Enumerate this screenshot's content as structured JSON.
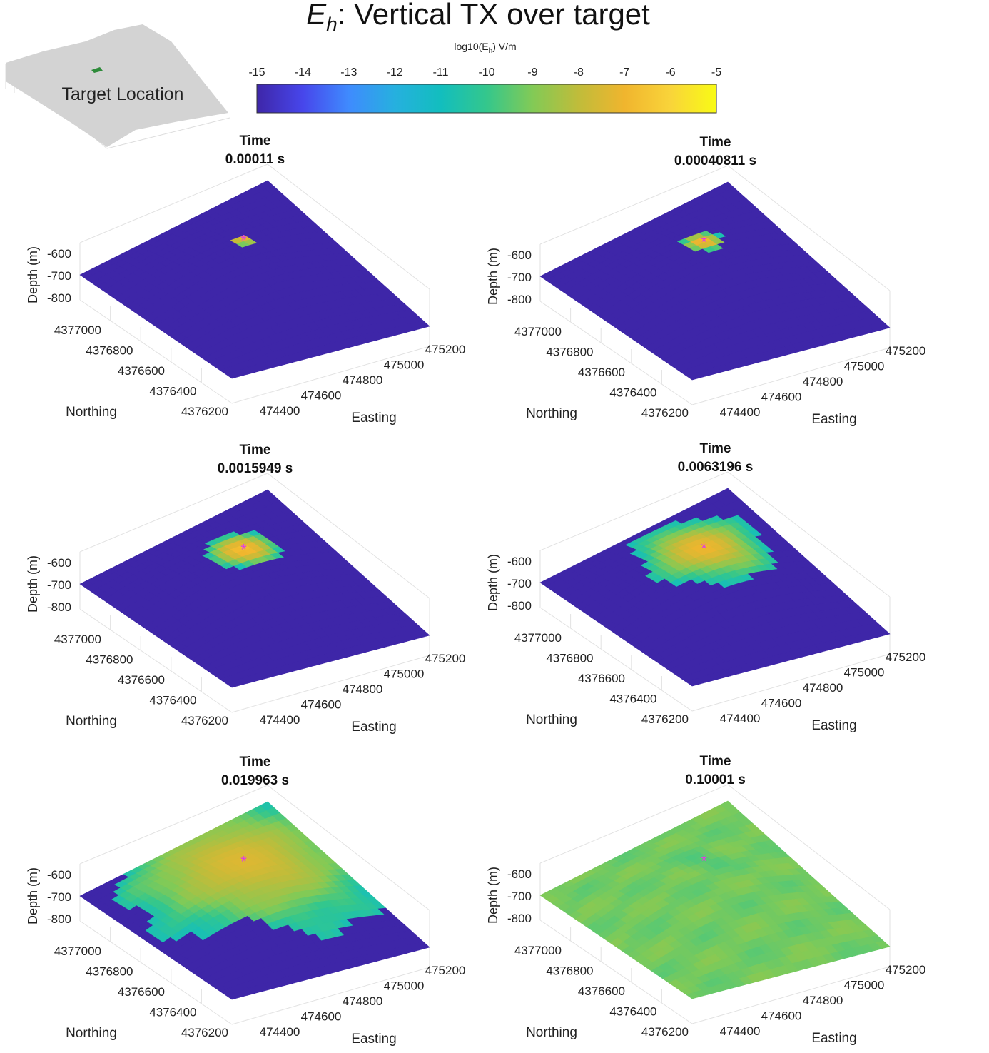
{
  "page": {
    "title_symbol": "E",
    "title_sub": "h",
    "title_rest": ": Vertical TX over target"
  },
  "inset": {
    "label": "Target Location",
    "target_color": "#2e8b3a",
    "surface_color": "#d3d3d3"
  },
  "chart_data": [
    {
      "type": "colorbar",
      "label_main": "log10(E",
      "label_sub": "h",
      "label_tail": ") V/m",
      "ticks": [
        -15,
        -14,
        -13,
        -12,
        -11,
        -10,
        -9,
        -8,
        -7,
        -6,
        -5
      ],
      "range": [
        -15,
        -5
      ],
      "colormap": "parula",
      "colors": [
        "#3e26a8",
        "#4746eb",
        "#3f8bfe",
        "#26b0df",
        "#12bebe",
        "#34c78c",
        "#82ca56",
        "#c0bc3a",
        "#f0b52e",
        "#f9d43a",
        "#f9fb15"
      ]
    },
    {
      "type": "surface3d",
      "title_line1": "Time",
      "time": "0.00011 s",
      "zlabel": "Depth (m)",
      "xlabel": "Easting",
      "ylabel": "Northing",
      "z_ticks": [
        "-600",
        "-700",
        "-800"
      ],
      "x_ticks": [
        "474400",
        "474600",
        "474800",
        "475000",
        "475200"
      ],
      "y_ticks": [
        "4377000",
        "4376800",
        "4376600",
        "4376400",
        "4376200"
      ],
      "background_log10": -15,
      "anomaly_peak_log10": -6.5,
      "anomaly_radius": 0.045,
      "target_marker": "*",
      "marker_color": "#e040e0"
    },
    {
      "type": "surface3d",
      "title_line1": "Time",
      "time": "0.00040811 s",
      "zlabel": "Depth (m)",
      "xlabel": "Easting",
      "ylabel": "Northing",
      "z_ticks": [
        "-600",
        "-700",
        "-800"
      ],
      "x_ticks": [
        "474400",
        "474600",
        "474800",
        "475000",
        "475200"
      ],
      "y_ticks": [
        "4377000",
        "4376800",
        "4376600",
        "4376400",
        "4376200"
      ],
      "background_log10": -15,
      "anomaly_peak_log10": -6.6,
      "anomaly_radius": 0.08,
      "target_marker": "*",
      "marker_color": "#e040e0"
    },
    {
      "type": "surface3d",
      "title_line1": "Time",
      "time": "0.0015949 s",
      "zlabel": "Depth (m)",
      "xlabel": "Easting",
      "ylabel": "Northing",
      "z_ticks": [
        "-600",
        "-700",
        "-800"
      ],
      "x_ticks": [
        "474400",
        "474600",
        "474800",
        "475000",
        "475200"
      ],
      "y_ticks": [
        "4377000",
        "4376800",
        "4376600",
        "4376400",
        "4376200"
      ],
      "background_log10": -15,
      "anomaly_peak_log10": -6.6,
      "anomaly_radius": 0.15,
      "target_marker": "*",
      "marker_color": "#e040e0"
    },
    {
      "type": "surface3d",
      "title_line1": "Time",
      "time": "0.0063196 s",
      "zlabel": "Depth (m)",
      "xlabel": "Easting",
      "ylabel": "Northing",
      "z_ticks": [
        "-600",
        "-700",
        "-800"
      ],
      "x_ticks": [
        "474400",
        "474600",
        "474800",
        "475000",
        "475200"
      ],
      "y_ticks": [
        "4377000",
        "4376800",
        "4376600",
        "4376400",
        "4376200"
      ],
      "background_log10": -15,
      "anomaly_peak_log10": -7.0,
      "anomaly_radius": 0.26,
      "target_marker": "*",
      "marker_color": "#e040e0"
    },
    {
      "type": "surface3d",
      "title_line1": "Time",
      "time": "0.019963 s",
      "zlabel": "Depth (m)",
      "xlabel": "Easting",
      "ylabel": "Northing",
      "z_ticks": [
        "-600",
        "-700",
        "-800"
      ],
      "x_ticks": [
        "474400",
        "474600",
        "474800",
        "475000",
        "475200"
      ],
      "y_ticks": [
        "4377000",
        "4376800",
        "4376600",
        "4376400",
        "4376200"
      ],
      "background_log10": -15,
      "anomaly_peak_log10": -7.4,
      "anomaly_radius": 0.5,
      "target_marker": "*",
      "marker_color": "#e040e0"
    },
    {
      "type": "surface3d",
      "title_line1": "Time",
      "time": "0.10001 s",
      "zlabel": "Depth (m)",
      "xlabel": "Easting",
      "ylabel": "Northing",
      "z_ticks": [
        "-600",
        "-700",
        "-800"
      ],
      "x_ticks": [
        "474400",
        "474600",
        "474800",
        "475000",
        "475200"
      ],
      "y_ticks": [
        "4377000",
        "4376800",
        "4376600",
        "4376400",
        "4376200"
      ],
      "background_log10": -9.2,
      "anomaly_peak_log10": -9.7,
      "anomaly_radius": 0.12,
      "target_marker": "*",
      "marker_color": "#e040e0"
    }
  ]
}
